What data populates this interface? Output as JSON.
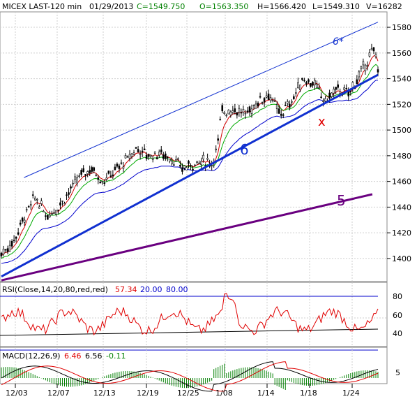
{
  "header": {
    "symbol": "MICEX LAST-120 min",
    "date": "01/29/2013",
    "close": "C=1549.750",
    "open": "O=1563.350",
    "high": "H=1566.420",
    "low": "L=1549.310",
    "volume": "V=16282"
  },
  "colors": {
    "header_green": "#008000",
    "grid": "#cfcfcf",
    "candles": "#000000",
    "ma_fast": "#d00000",
    "ma_mid": "#00aa00",
    "ma_slow": "#0000cc",
    "trend_blue": "#1030d0",
    "trend_purple": "#6a0080",
    "rsi": "#e00000",
    "macd_fast": "#000000",
    "macd_signal": "#e00000",
    "macd_hist": "#008000"
  },
  "annotations": {
    "upper_channel": "6*",
    "main_trend": "6",
    "lower_trend": "5",
    "marker": "x"
  },
  "rsi_panel": {
    "title": "RSI(Close,14,20,80,red,red)",
    "value": "57.34",
    "level_low": "20.00",
    "level_high": "80.00",
    "ticks": [
      "80",
      "60",
      "40"
    ]
  },
  "macd_panel": {
    "title": "MACD(12,26,9)",
    "macd": "6.46",
    "signal": "6.56",
    "hist": "-0.11",
    "ticks": [
      "5"
    ]
  },
  "chart_data": {
    "type": "candlestick",
    "title": "MICEX LAST-120 min",
    "y_ticks": [
      1400,
      1420,
      1440,
      1460,
      1480,
      1500,
      1520,
      1540,
      1560,
      1580
    ],
    "ylim": [
      1382,
      1592
    ],
    "x_ticks": [
      "12/03",
      "12/07",
      "12/13",
      "12/19",
      "12/25",
      "1/08",
      "1/14",
      "1/18",
      "1/24"
    ],
    "grid": true,
    "close_path": [
      {
        "x": 0,
        "y": 1404
      },
      {
        "x": 0.03,
        "y": 1412
      },
      {
        "x": 0.06,
        "y": 1432
      },
      {
        "x": 0.09,
        "y": 1448
      },
      {
        "x": 0.12,
        "y": 1433
      },
      {
        "x": 0.15,
        "y": 1440
      },
      {
        "x": 0.18,
        "y": 1452
      },
      {
        "x": 0.21,
        "y": 1465
      },
      {
        "x": 0.24,
        "y": 1470
      },
      {
        "x": 0.27,
        "y": 1460
      },
      {
        "x": 0.3,
        "y": 1468
      },
      {
        "x": 0.33,
        "y": 1476
      },
      {
        "x": 0.36,
        "y": 1486
      },
      {
        "x": 0.39,
        "y": 1480
      },
      {
        "x": 0.42,
        "y": 1482
      },
      {
        "x": 0.45,
        "y": 1478
      },
      {
        "x": 0.48,
        "y": 1470
      },
      {
        "x": 0.51,
        "y": 1474
      },
      {
        "x": 0.54,
        "y": 1476
      },
      {
        "x": 0.56,
        "y": 1474
      },
      {
        "x": 0.575,
        "y": 1490
      },
      {
        "x": 0.585,
        "y": 1515
      },
      {
        "x": 0.62,
        "y": 1516
      },
      {
        "x": 0.65,
        "y": 1512
      },
      {
        "x": 0.68,
        "y": 1522
      },
      {
        "x": 0.71,
        "y": 1528
      },
      {
        "x": 0.74,
        "y": 1512
      },
      {
        "x": 0.77,
        "y": 1522
      },
      {
        "x": 0.8,
        "y": 1540
      },
      {
        "x": 0.83,
        "y": 1536
      },
      {
        "x": 0.86,
        "y": 1522
      },
      {
        "x": 0.89,
        "y": 1532
      },
      {
        "x": 0.92,
        "y": 1528
      },
      {
        "x": 0.95,
        "y": 1542
      },
      {
        "x": 0.975,
        "y": 1556
      },
      {
        "x": 0.99,
        "y": 1562
      },
      {
        "x": 1.0,
        "y": 1550
      }
    ],
    "trend_lines": [
      {
        "name": "6*",
        "x": [
          0.06,
          1.0
        ],
        "y": [
          1463,
          1584
        ]
      },
      {
        "name": "6",
        "x": [
          0.0,
          1.0
        ],
        "y": [
          1386,
          1543
        ]
      },
      {
        "name": "5",
        "x": [
          0.0,
          0.985
        ],
        "y": [
          1383,
          1450
        ]
      }
    ],
    "rsi": {
      "ylim": [
        20,
        100
      ],
      "last": 57.34,
      "levels": [
        20,
        80
      ]
    },
    "macd": {
      "last": 6.46,
      "signal": 6.56,
      "hist": -0.11
    }
  }
}
